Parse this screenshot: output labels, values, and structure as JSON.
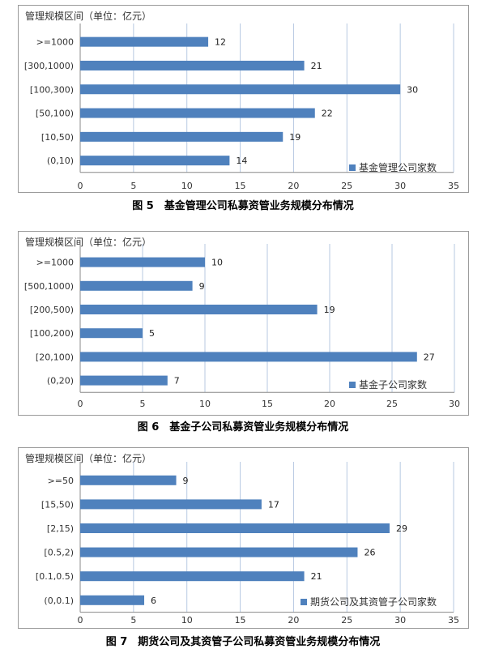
{
  "bar_color": "#4f81bd",
  "grid_color": "#b7c9e2",
  "chart_data": [
    {
      "type": "bar",
      "orientation": "horizontal",
      "ylabel": "管理规模区间（单位：亿元）",
      "categories": [
        ">=1000",
        "[300,1000)",
        "[100,300)",
        "[50,100)",
        "[10,50)",
        "(0,10)"
      ],
      "series": [
        {
          "name": "基金管理公司家数",
          "values": [
            12,
            21,
            30,
            22,
            19,
            14
          ]
        }
      ],
      "xlim": [
        0,
        35
      ],
      "xticks": [
        "0",
        "5",
        "10",
        "15",
        "20",
        "25",
        "30",
        "35"
      ],
      "grid": true,
      "legend": "bottom-right",
      "caption": "图 5　基金管理公司私募资管业务规模分布情况"
    },
    {
      "type": "bar",
      "orientation": "horizontal",
      "ylabel": "管理规模区间（单位：亿元）",
      "categories": [
        ">=1000",
        "[500,1000)",
        "[200,500)",
        "[100,200)",
        "[20,100)",
        "(0,20)"
      ],
      "series": [
        {
          "name": "基金子公司家数",
          "values": [
            10,
            9,
            19,
            5,
            27,
            7
          ]
        }
      ],
      "xlim": [
        0,
        30
      ],
      "xticks": [
        "0",
        "5",
        "10",
        "15",
        "20",
        "25",
        "30"
      ],
      "grid": true,
      "legend": "bottom-right",
      "caption": "图 6　基金子公司私募资管业务规模分布情况"
    },
    {
      "type": "bar",
      "orientation": "horizontal",
      "ylabel": "管理规模区间（单位：亿元）",
      "categories": [
        ">=50",
        "[15,50)",
        "[2,15)",
        "[0.5,2)",
        "[0.1,0.5)",
        "(0,0.1)"
      ],
      "series": [
        {
          "name": "期货公司及其资管子公司家数",
          "values": [
            9,
            17,
            29,
            26,
            21,
            6
          ]
        }
      ],
      "xlim": [
        0,
        35
      ],
      "xticks": [
        "0",
        "5",
        "10",
        "15",
        "20",
        "25",
        "30",
        "35"
      ],
      "grid": true,
      "legend": "bottom-right",
      "caption": "图 7　期货公司及其资管子公司私募资管业务规模分布情况"
    }
  ]
}
